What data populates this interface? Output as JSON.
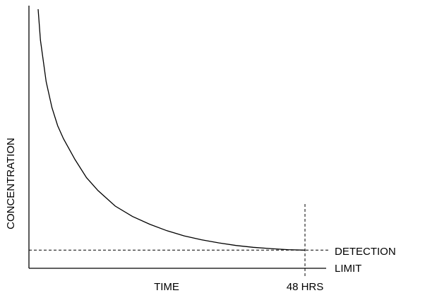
{
  "chart_data": {
    "type": "line",
    "title": "",
    "xlabel": "TIME",
    "ylabel": "CONCENTRATION",
    "grid": false,
    "x_tick_labels": [
      "48 HRS"
    ],
    "x_marker": {
      "label": "48 HRS",
      "x": 48
    },
    "detection_limit": {
      "label_line1": "DETECTION",
      "label_line2": "LIMIT",
      "value": 0.07
    },
    "series": [
      {
        "x": [
          1.6,
          2,
          3,
          4,
          5,
          6,
          8,
          10,
          12,
          15,
          18,
          21,
          24,
          27,
          30,
          33,
          36,
          39,
          42,
          45,
          48
        ],
        "y": [
          1.0,
          0.88,
          0.72,
          0.62,
          0.55,
          0.5,
          0.42,
          0.35,
          0.3,
          0.24,
          0.2,
          0.17,
          0.145,
          0.125,
          0.11,
          0.098,
          0.088,
          0.081,
          0.076,
          0.072,
          0.07
        ]
      }
    ]
  }
}
